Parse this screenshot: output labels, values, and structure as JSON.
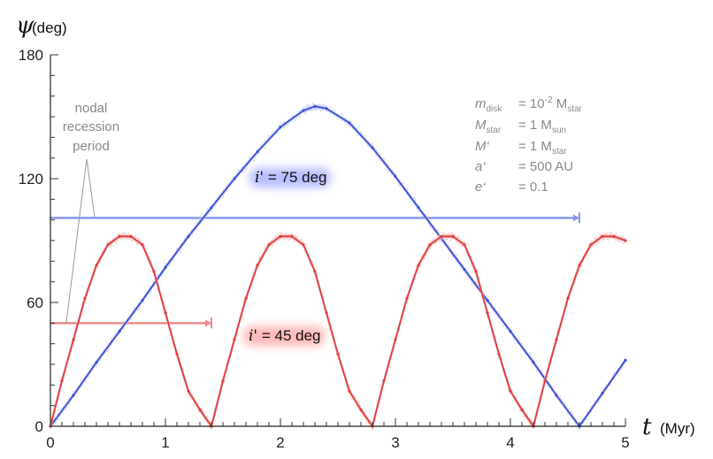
{
  "chart_data": {
    "type": "line",
    "title": "",
    "xlabel": {
      "symbol": "t",
      "unit": "(Myr)"
    },
    "ylabel": {
      "symbol": "ψ",
      "unit": "(deg)"
    },
    "xlim": [
      0,
      5
    ],
    "ylim": [
      0,
      180
    ],
    "x_ticks": [
      0,
      1,
      2,
      3,
      4,
      5
    ],
    "y_ticks": [
      0,
      60,
      120,
      180
    ],
    "grid": false,
    "series": [
      {
        "name": "i' = 75 deg",
        "label_symbol": "i'",
        "label_rest": " = 75 deg",
        "color": "#3b4fe0",
        "period": 4.6,
        "x": [
          0,
          0.2,
          0.4,
          0.6,
          0.8,
          1.0,
          1.2,
          1.4,
          1.6,
          1.8,
          2.0,
          2.2,
          2.3,
          2.4,
          2.6,
          2.8,
          3.0,
          3.2,
          3.4,
          3.6,
          3.8,
          4.0,
          4.2,
          4.4,
          4.6,
          4.8,
          5.0
        ],
        "y": [
          0,
          15,
          31,
          46,
          61,
          77,
          92,
          106,
          120,
          133,
          145,
          153,
          155,
          154,
          147,
          135,
          121,
          106,
          91,
          76,
          61,
          46,
          31,
          15,
          0,
          16,
          32
        ]
      },
      {
        "name": "i' = 45 deg",
        "label_symbol": "i'",
        "label_rest": " = 45 deg",
        "color": "#e8393a",
        "period": 1.4,
        "x": [
          0,
          0.1,
          0.2,
          0.3,
          0.4,
          0.5,
          0.6,
          0.7,
          0.8,
          0.9,
          1.0,
          1.1,
          1.2,
          1.3,
          1.4,
          1.5,
          1.6,
          1.7,
          1.8,
          1.9,
          2.0,
          2.1,
          2.2,
          2.3,
          2.4,
          2.5,
          2.6,
          2.7,
          2.8,
          2.9,
          3.0,
          3.1,
          3.2,
          3.3,
          3.4,
          3.5,
          3.6,
          3.7,
          3.8,
          3.9,
          4.0,
          4.1,
          4.2,
          4.3,
          4.4,
          4.5,
          4.6,
          4.7,
          4.8,
          4.9,
          5.0
        ],
        "y": [
          0,
          22,
          42,
          62,
          78,
          88,
          92,
          92,
          88,
          75,
          55,
          35,
          17,
          8,
          0,
          22,
          42,
          62,
          78,
          88,
          92,
          92,
          88,
          75,
          55,
          35,
          17,
          8,
          0,
          22,
          42,
          62,
          78,
          88,
          92,
          92,
          88,
          75,
          55,
          35,
          17,
          8,
          0,
          22,
          42,
          62,
          78,
          88,
          92,
          92,
          90
        ]
      }
    ],
    "period_bars": [
      {
        "series": "i' = 75 deg",
        "y": 101,
        "x_start": 0,
        "x_end": 4.6,
        "color": "#8a97f0"
      },
      {
        "series": "i' = 45 deg",
        "y": 50,
        "x_start": 0,
        "x_end": 1.4,
        "color": "#f08a8a"
      }
    ],
    "annotations": {
      "nodal": [
        "nodal",
        "recession",
        "period"
      ],
      "params": [
        {
          "sym": "m",
          "sub": "disk",
          "eq": "= 10",
          "sup": "-2",
          "tail": " M",
          "tail_sub": "star"
        },
        {
          "sym": "M",
          "sub": "star",
          "eq": "= 1 M",
          "sup": "",
          "tail": "",
          "tail_sub": "sun"
        },
        {
          "sym": "M‘",
          "sub": "",
          "eq": "= 1 M",
          "sup": "",
          "tail": "",
          "tail_sub": "star"
        },
        {
          "sym": "a‘",
          "sub": "",
          "eq": "= 500 AU",
          "sup": "",
          "tail": "",
          "tail_sub": ""
        },
        {
          "sym": "e‘",
          "sub": "",
          "eq": "= 0.1",
          "sup": "",
          "tail": "",
          "tail_sub": ""
        }
      ]
    }
  }
}
